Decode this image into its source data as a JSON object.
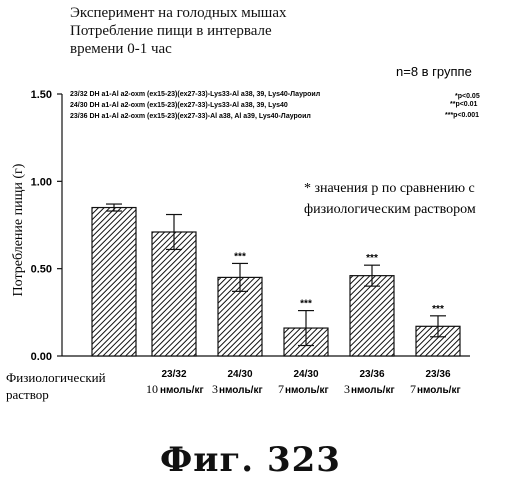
{
  "header": {
    "line1": "Эксперимент на голодных мышах",
    "line2": "Потребление пищи в интервале",
    "line3": "времени 0-1 час"
  },
  "group_size": "n=8 в группе",
  "legend": {
    "rows": [
      "23/32 DH a1-Al a2-oxm (ex15-23)(ex27-33)-Lys33-Al a38, 39, Lys40-Лауроил",
      "24/30 DH a1-Al a2-oxm (ex15-23)(ex27-33)-Lys33-Al a38, 39, Lys40",
      "23/36 DH a1-Al a2-oxm (ex15-23)(ex27-33)-Al a38, Al a39, Lys40-Лауроил"
    ],
    "sig": [
      "*p<0.05",
      "**p<0.01",
      "***p<0.001"
    ]
  },
  "note": {
    "line1": "* значения p по сравнению с",
    "line2": "физиологическим раствором"
  },
  "figure_caption": "Фиг. 323",
  "chart_data": {
    "type": "bar",
    "ylabel": "Потребление пищи (г)",
    "ylim": [
      0,
      1.5
    ],
    "yticks": [
      "0.00",
      "0.50",
      "1.00",
      "1.50"
    ],
    "ytick_values": [
      0,
      0.5,
      1.0,
      1.5
    ],
    "categories": [
      {
        "name": "Физиологический раствор",
        "dose": "",
        "unit": ""
      },
      {
        "name": "23/32",
        "dose": "10",
        "unit": "нмоль/кг"
      },
      {
        "name": "24/30",
        "dose": "3",
        "unit": "нмоль/кг"
      },
      {
        "name": "24/30",
        "dose": "7",
        "unit": "нмоль/кг"
      },
      {
        "name": "23/36",
        "dose": "3",
        "unit": "нмоль/кг"
      },
      {
        "name": "23/36",
        "dose": "7",
        "unit": "нмоль/кг"
      }
    ],
    "values": [
      0.85,
      0.71,
      0.45,
      0.16,
      0.46,
      0.17
    ],
    "errors": [
      0.02,
      0.1,
      0.08,
      0.1,
      0.06,
      0.06
    ],
    "significance": [
      "",
      "",
      "***",
      "***",
      "***",
      "***"
    ]
  }
}
